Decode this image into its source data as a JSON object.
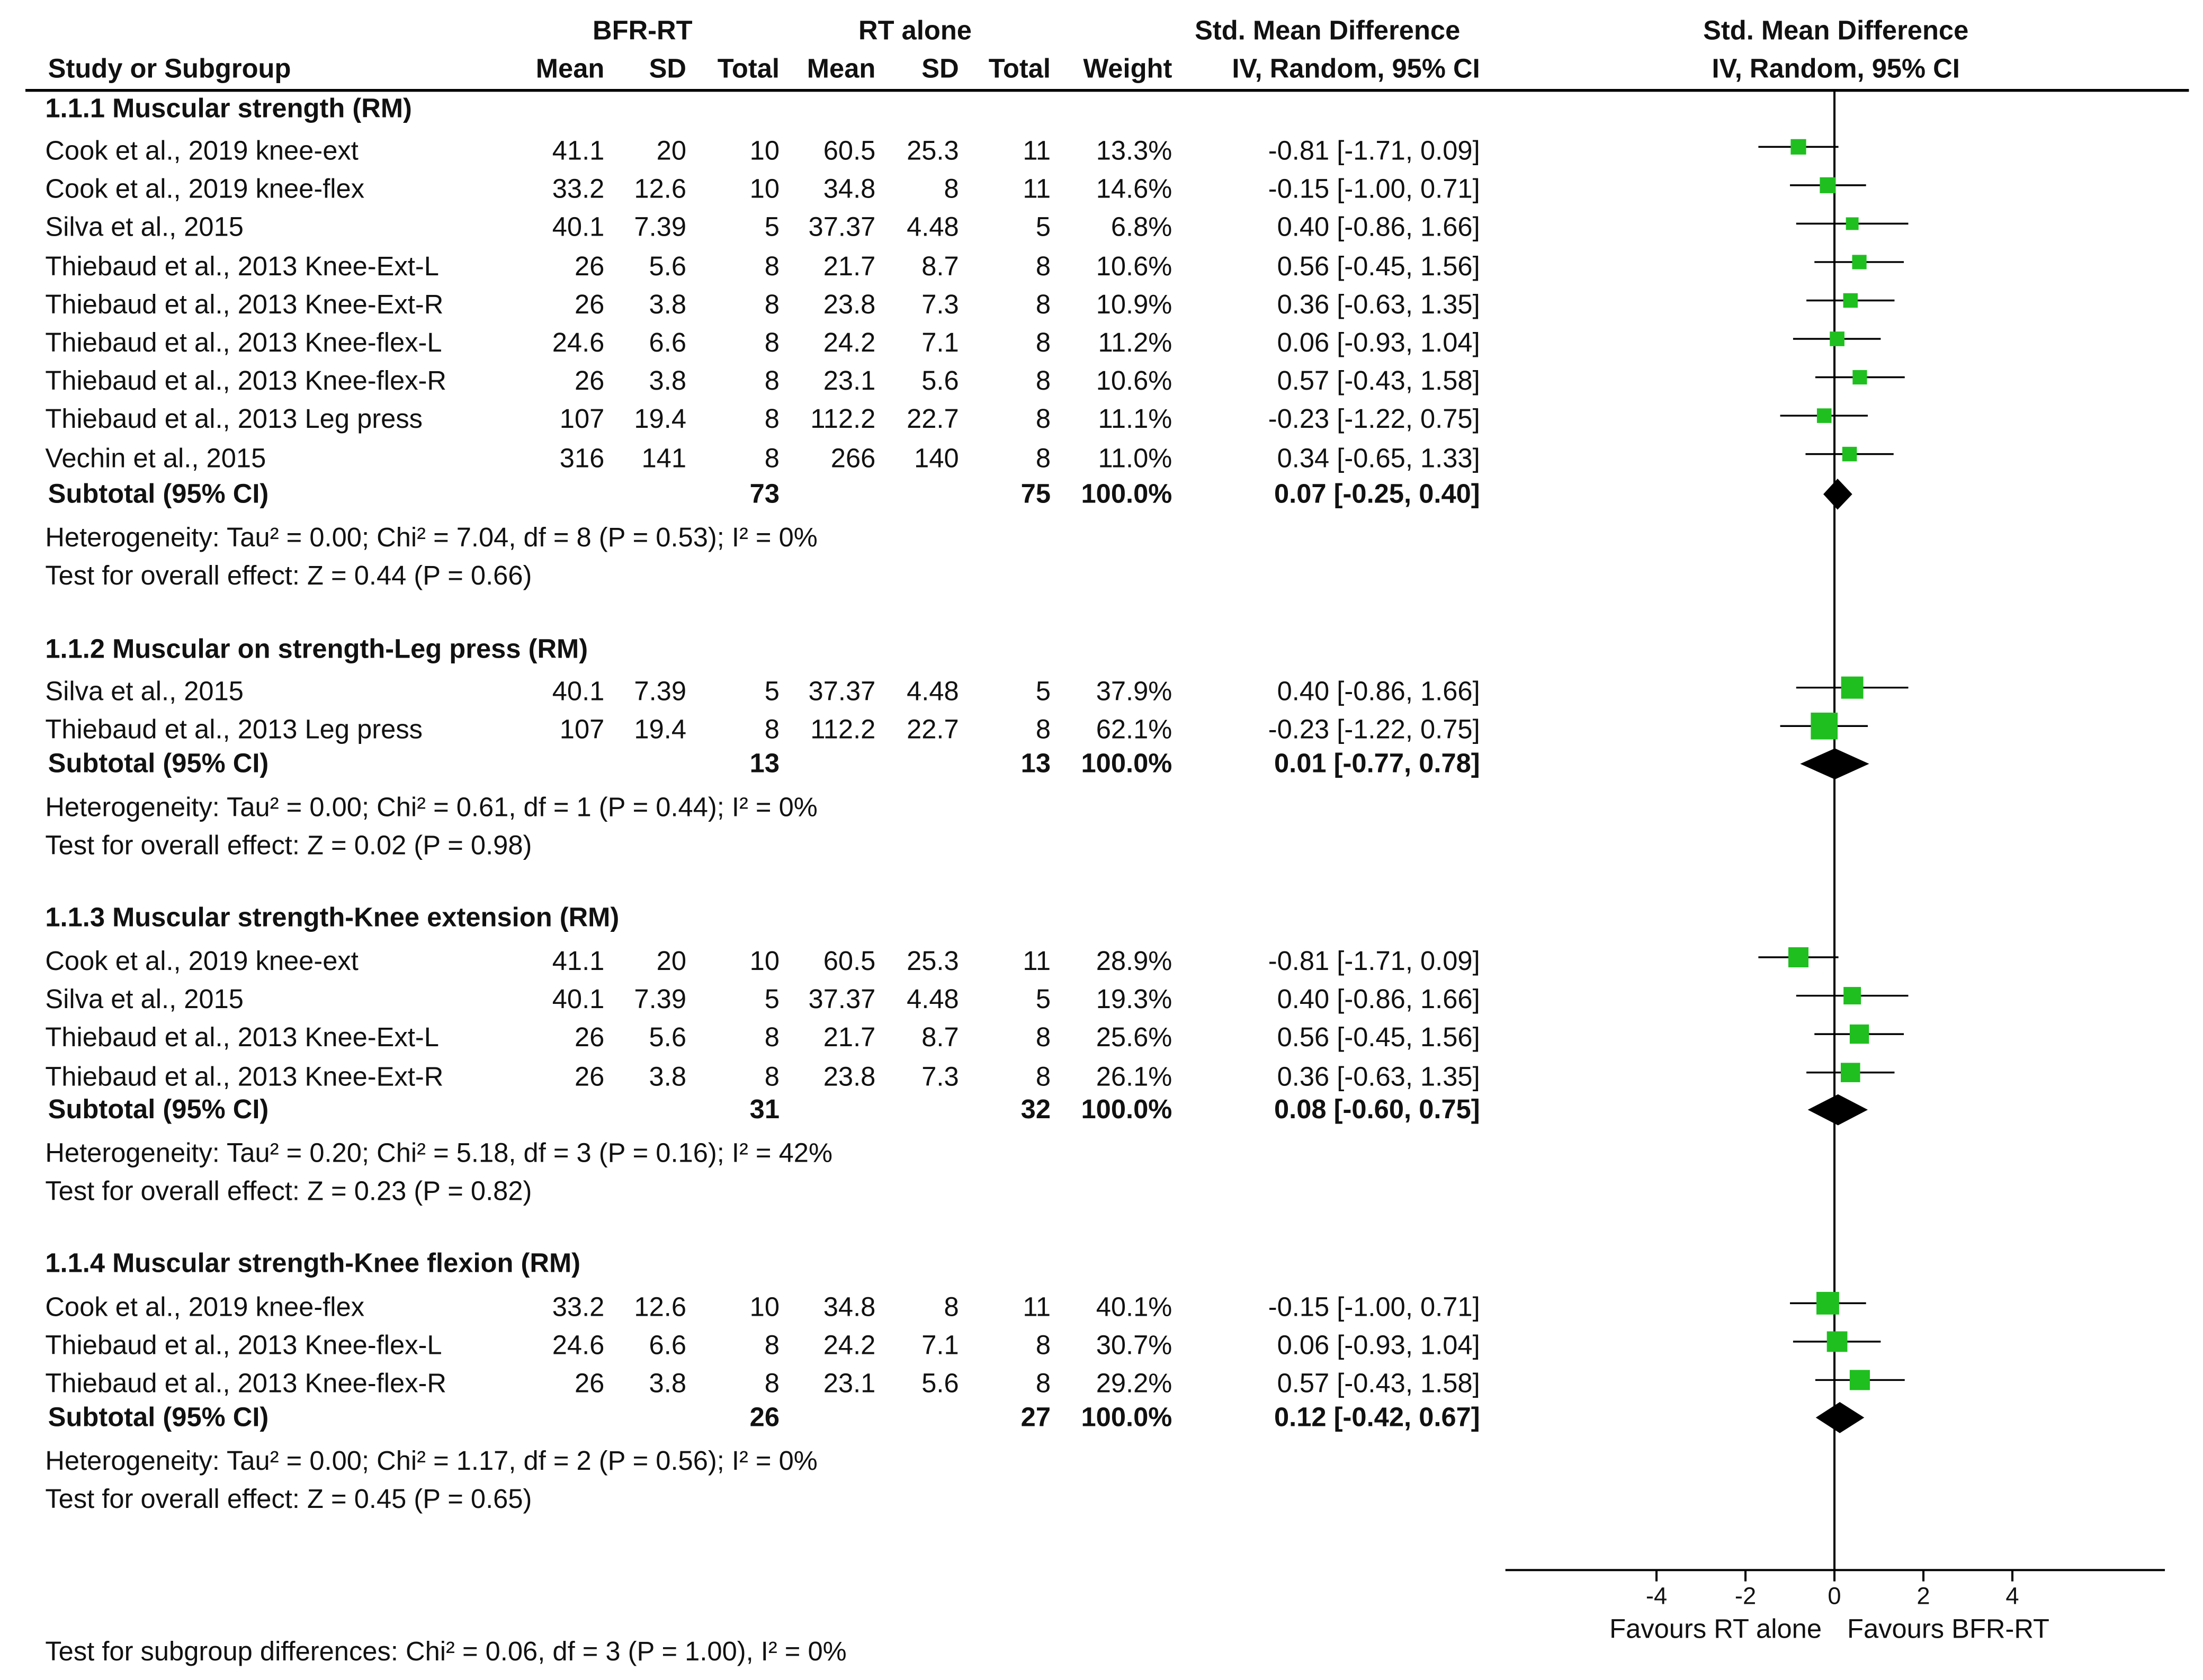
{
  "header": {
    "group1": "BFR-RT",
    "group2": "RT alone",
    "smd_table": "Std. Mean Difference",
    "smd_plot": "Std. Mean Difference",
    "col_study": "Study or Subgroup",
    "col_mean1": "Mean",
    "col_sd1": "SD",
    "col_total1": "Total",
    "col_mean2": "Mean",
    "col_sd2": "SD",
    "col_total2": "Total",
    "col_weight": "Weight",
    "col_ci": "IV, Random, 95% CI",
    "plot_ci": "IV, Random, 95% CI"
  },
  "subgroups": [
    {
      "title": "1.1.1 Muscular strength (RM)",
      "studies": [
        {
          "study": "Cook et al., 2019 knee-ext",
          "mean1": "41.1",
          "sd1": "20",
          "total1": "10",
          "mean2": "60.5",
          "sd2": "25.3",
          "total2": "11",
          "weight": "13.3%",
          "ci": "-0.81 [-1.71, 0.09]"
        },
        {
          "study": "Cook et al., 2019 knee-flex",
          "mean1": "33.2",
          "sd1": "12.6",
          "total1": "10",
          "mean2": "34.8",
          "sd2": "8",
          "total2": "11",
          "weight": "14.6%",
          "ci": "-0.15 [-1.00, 0.71]"
        },
        {
          "study": "Silva et al., 2015",
          "mean1": "40.1",
          "sd1": "7.39",
          "total1": "5",
          "mean2": "37.37",
          "sd2": "4.48",
          "total2": "5",
          "weight": "6.8%",
          "ci": "0.40 [-0.86, 1.66]"
        },
        {
          "study": "Thiebaud et al., 2013 Knee-Ext-L",
          "mean1": "26",
          "sd1": "5.6",
          "total1": "8",
          "mean2": "21.7",
          "sd2": "8.7",
          "total2": "8",
          "weight": "10.6%",
          "ci": "0.56 [-0.45, 1.56]"
        },
        {
          "study": "Thiebaud et al., 2013 Knee-Ext-R",
          "mean1": "26",
          "sd1": "3.8",
          "total1": "8",
          "mean2": "23.8",
          "sd2": "7.3",
          "total2": "8",
          "weight": "10.9%",
          "ci": "0.36 [-0.63, 1.35]"
        },
        {
          "study": "Thiebaud et al., 2013 Knee-flex-L",
          "mean1": "24.6",
          "sd1": "6.6",
          "total1": "8",
          "mean2": "24.2",
          "sd2": "7.1",
          "total2": "8",
          "weight": "11.2%",
          "ci": "0.06 [-0.93, 1.04]"
        },
        {
          "study": "Thiebaud et al., 2013 Knee-flex-R",
          "mean1": "26",
          "sd1": "3.8",
          "total1": "8",
          "mean2": "23.1",
          "sd2": "5.6",
          "total2": "8",
          "weight": "10.6%",
          "ci": "0.57 [-0.43, 1.58]"
        },
        {
          "study": "Thiebaud et al., 2013 Leg press",
          "mean1": "107",
          "sd1": "19.4",
          "total1": "8",
          "mean2": "112.2",
          "sd2": "22.7",
          "total2": "8",
          "weight": "11.1%",
          "ci": "-0.23 [-1.22, 0.75]"
        },
        {
          "study": "Vechin et al., 2015",
          "mean1": "316",
          "sd1": "141",
          "total1": "8",
          "mean2": "266",
          "sd2": "140",
          "total2": "8",
          "weight": "11.0%",
          "ci": "0.34 [-0.65, 1.33]"
        }
      ],
      "subtotal": {
        "label": "Subtotal (95% CI)",
        "total1": "73",
        "total2": "75",
        "weight": "100.0%",
        "ci": "0.07 [-0.25, 0.40]"
      },
      "heterogeneity": "Heterogeneity: Tau² = 0.00; Chi² = 7.04, df = 8 (P = 0.53); I² = 0%",
      "overall": "Test for overall effect: Z = 0.44 (P = 0.66)"
    },
    {
      "title": "1.1.2 Muscular on strength-Leg press (RM)",
      "studies": [
        {
          "study": "Silva et al., 2015",
          "mean1": "40.1",
          "sd1": "7.39",
          "total1": "5",
          "mean2": "37.37",
          "sd2": "4.48",
          "total2": "5",
          "weight": "37.9%",
          "ci": "0.40 [-0.86, 1.66]"
        },
        {
          "study": "Thiebaud et al., 2013 Leg press",
          "mean1": "107",
          "sd1": "19.4",
          "total1": "8",
          "mean2": "112.2",
          "sd2": "22.7",
          "total2": "8",
          "weight": "62.1%",
          "ci": "-0.23 [-1.22, 0.75]"
        }
      ],
      "subtotal": {
        "label": "Subtotal (95% CI)",
        "total1": "13",
        "total2": "13",
        "weight": "100.0%",
        "ci": "0.01 [-0.77, 0.78]"
      },
      "heterogeneity": "Heterogeneity: Tau² = 0.00; Chi² = 0.61, df = 1 (P = 0.44); I² = 0%",
      "overall": "Test for overall effect: Z = 0.02 (P = 0.98)"
    },
    {
      "title": "1.1.3 Muscular strength-Knee extension (RM)",
      "studies": [
        {
          "study": "Cook et al., 2019 knee-ext",
          "mean1": "41.1",
          "sd1": "20",
          "total1": "10",
          "mean2": "60.5",
          "sd2": "25.3",
          "total2": "11",
          "weight": "28.9%",
          "ci": "-0.81 [-1.71, 0.09]"
        },
        {
          "study": "Silva et al., 2015",
          "mean1": "40.1",
          "sd1": "7.39",
          "total1": "5",
          "mean2": "37.37",
          "sd2": "4.48",
          "total2": "5",
          "weight": "19.3%",
          "ci": "0.40 [-0.86, 1.66]"
        },
        {
          "study": "Thiebaud et al., 2013 Knee-Ext-L",
          "mean1": "26",
          "sd1": "5.6",
          "total1": "8",
          "mean2": "21.7",
          "sd2": "8.7",
          "total2": "8",
          "weight": "25.6%",
          "ci": "0.56 [-0.45, 1.56]"
        },
        {
          "study": "Thiebaud et al., 2013 Knee-Ext-R",
          "mean1": "26",
          "sd1": "3.8",
          "total1": "8",
          "mean2": "23.8",
          "sd2": "7.3",
          "total2": "8",
          "weight": "26.1%",
          "ci": "0.36 [-0.63, 1.35]"
        }
      ],
      "subtotal": {
        "label": "Subtotal (95% CI)",
        "total1": "31",
        "total2": "32",
        "weight": "100.0%",
        "ci": "0.08 [-0.60, 0.75]"
      },
      "heterogeneity": "Heterogeneity: Tau² = 0.20; Chi² = 5.18, df = 3 (P = 0.16); I² = 42%",
      "overall": "Test for overall effect: Z = 0.23 (P = 0.82)"
    },
    {
      "title": "1.1.4 Muscular strength-Knee flexion (RM)",
      "studies": [
        {
          "study": "Cook et al., 2019 knee-flex",
          "mean1": "33.2",
          "sd1": "12.6",
          "total1": "10",
          "mean2": "34.8",
          "sd2": "8",
          "total2": "11",
          "weight": "40.1%",
          "ci": "-0.15 [-1.00, 0.71]"
        },
        {
          "study": "Thiebaud et al., 2013 Knee-flex-L",
          "mean1": "24.6",
          "sd1": "6.6",
          "total1": "8",
          "mean2": "24.2",
          "sd2": "7.1",
          "total2": "8",
          "weight": "30.7%",
          "ci": "0.06 [-0.93, 1.04]"
        },
        {
          "study": "Thiebaud et al., 2013 Knee-flex-R",
          "mean1": "26",
          "sd1": "3.8",
          "total1": "8",
          "mean2": "23.1",
          "sd2": "5.6",
          "total2": "8",
          "weight": "29.2%",
          "ci": "0.57 [-0.43, 1.58]"
        }
      ],
      "subtotal": {
        "label": "Subtotal (95% CI)",
        "total1": "26",
        "total2": "27",
        "weight": "100.0%",
        "ci": "0.12 [-0.42, 0.67]"
      },
      "heterogeneity": "Heterogeneity: Tau² = 0.00; Chi² = 1.17, df = 2 (P = 0.56); I² = 0%",
      "overall": "Test for overall effect: Z = 0.45 (P = 0.65)"
    }
  ],
  "footer": {
    "subgroup_test": "Test for subgroup differences: Chi² = 0.06, df = 3 (P = 1.00), I² = 0%"
  },
  "chart_data": {
    "type": "forest",
    "title": "Std. Mean Difference",
    "subtitle": "IV, Random, 95% CI",
    "xlim": [
      -7.5,
      7.5
    ],
    "x_ticks": [
      "-4",
      "-2",
      "0",
      "2",
      "4"
    ],
    "tick_values": [
      -4,
      -2,
      0,
      2,
      4
    ],
    "favours_left": "Favours RT alone",
    "favours_right": "Favours BFR-RT",
    "colors": {
      "study_marker": "#1fbf1f",
      "diamond": "#000000",
      "axis": "#000000"
    },
    "groups": [
      {
        "name": "1.1.1 Muscular strength (RM)",
        "studies": [
          {
            "study": "Cook et al., 2019 knee-ext",
            "smd": -0.81,
            "low": -1.71,
            "high": 0.09,
            "weight": 13.3
          },
          {
            "study": "Cook et al., 2019 knee-flex",
            "smd": -0.15,
            "low": -1.0,
            "high": 0.71,
            "weight": 14.6
          },
          {
            "study": "Silva et al., 2015",
            "smd": 0.4,
            "low": -0.86,
            "high": 1.66,
            "weight": 6.8
          },
          {
            "study": "Thiebaud et al., 2013 Knee-Ext-L",
            "smd": 0.56,
            "low": -0.45,
            "high": 1.56,
            "weight": 10.6
          },
          {
            "study": "Thiebaud et al., 2013 Knee-Ext-R",
            "smd": 0.36,
            "low": -0.63,
            "high": 1.35,
            "weight": 10.9
          },
          {
            "study": "Thiebaud et al., 2013 Knee-flex-L",
            "smd": 0.06,
            "low": -0.93,
            "high": 1.04,
            "weight": 11.2
          },
          {
            "study": "Thiebaud et al., 2013 Knee-flex-R",
            "smd": 0.57,
            "low": -0.43,
            "high": 1.58,
            "weight": 10.6
          },
          {
            "study": "Thiebaud et al., 2013 Leg press",
            "smd": -0.23,
            "low": -1.22,
            "high": 0.75,
            "weight": 11.1
          },
          {
            "study": "Vechin et al., 2015",
            "smd": 0.34,
            "low": -0.65,
            "high": 1.33,
            "weight": 11.0
          }
        ],
        "subtotal": {
          "smd": 0.07,
          "low": -0.25,
          "high": 0.4
        }
      },
      {
        "name": "1.1.2 Muscular on strength-Leg press (RM)",
        "studies": [
          {
            "study": "Silva et al., 2015",
            "smd": 0.4,
            "low": -0.86,
            "high": 1.66,
            "weight": 37.9
          },
          {
            "study": "Thiebaud et al., 2013 Leg press",
            "smd": -0.23,
            "low": -1.22,
            "high": 0.75,
            "weight": 62.1
          }
        ],
        "subtotal": {
          "smd": 0.01,
          "low": -0.77,
          "high": 0.78
        }
      },
      {
        "name": "1.1.3 Muscular strength-Knee extension (RM)",
        "studies": [
          {
            "study": "Cook et al., 2019 knee-ext",
            "smd": -0.81,
            "low": -1.71,
            "high": 0.09,
            "weight": 28.9
          },
          {
            "study": "Silva et al., 2015",
            "smd": 0.4,
            "low": -0.86,
            "high": 1.66,
            "weight": 19.3
          },
          {
            "study": "Thiebaud et al., 2013 Knee-Ext-L",
            "smd": 0.56,
            "low": -0.45,
            "high": 1.56,
            "weight": 25.6
          },
          {
            "study": "Thiebaud et al., 2013 Knee-Ext-R",
            "smd": 0.36,
            "low": -0.63,
            "high": 1.35,
            "weight": 26.1
          }
        ],
        "subtotal": {
          "smd": 0.08,
          "low": -0.6,
          "high": 0.75
        }
      },
      {
        "name": "1.1.4 Muscular strength-Knee flexion (RM)",
        "studies": [
          {
            "study": "Cook et al., 2019 knee-flex",
            "smd": -0.15,
            "low": -1.0,
            "high": 0.71,
            "weight": 40.1
          },
          {
            "study": "Thiebaud et al., 2013 Knee-flex-L",
            "smd": 0.06,
            "low": -0.93,
            "high": 1.04,
            "weight": 30.7
          },
          {
            "study": "Thiebaud et al., 2013 Knee-flex-R",
            "smd": 0.57,
            "low": -0.43,
            "high": 1.58,
            "weight": 29.2
          }
        ],
        "subtotal": {
          "smd": 0.12,
          "low": -0.42,
          "high": 0.67
        }
      }
    ]
  }
}
